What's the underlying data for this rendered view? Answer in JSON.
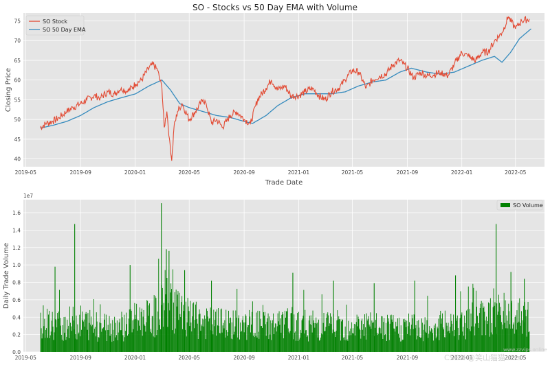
{
  "watermark": {
    "csdn": "CSDN",
    "author": "@笑山猫猫orss",
    "site": "www.zzvips.online"
  },
  "colors": {
    "stock": "#e24a33",
    "ema": "#348abd",
    "volume": "#008000",
    "plot_bg": "#e5e5e5",
    "grid": "#ffffff"
  },
  "chart_data": [
    {
      "type": "line",
      "title": "SO - Stocks vs 50 Day EMA with Volume",
      "xlabel": "Trade Date",
      "ylabel": "Closing Price",
      "xlim": [
        "2019-04-26",
        "2022-07-05"
      ],
      "ylim": [
        38,
        77
      ],
      "yticks": [
        40,
        45,
        50,
        55,
        60,
        65,
        70,
        75
      ],
      "xticks": [
        "2019-05",
        "2019-09",
        "2020-01",
        "2020-05",
        "2020-09",
        "2021-01",
        "2021-05",
        "2021-09",
        "2022-01",
        "2022-05"
      ],
      "grid": true,
      "legend_position": "top-left",
      "series": [
        {
          "name": "SO Stock",
          "x": [
            "2019-06-03",
            "2019-06-17",
            "2019-07-01",
            "2019-07-15",
            "2019-08-01",
            "2019-08-15",
            "2019-09-01",
            "2019-09-15",
            "2019-10-01",
            "2019-10-15",
            "2019-11-01",
            "2019-11-15",
            "2019-12-01",
            "2019-12-15",
            "2020-01-02",
            "2020-01-15",
            "2020-02-01",
            "2020-02-10",
            "2020-02-20",
            "2020-03-01",
            "2020-03-06",
            "2020-03-12",
            "2020-03-18",
            "2020-03-23",
            "2020-03-28",
            "2020-04-05",
            "2020-04-15",
            "2020-05-01",
            "2020-05-15",
            "2020-06-01",
            "2020-06-08",
            "2020-06-20",
            "2020-07-01",
            "2020-07-15",
            "2020-08-01",
            "2020-08-15",
            "2020-09-01",
            "2020-09-15",
            "2020-10-01",
            "2020-10-20",
            "2020-11-01",
            "2020-11-15",
            "2020-12-01",
            "2020-12-15",
            "2021-01-01",
            "2021-01-15",
            "2021-02-01",
            "2021-02-15",
            "2021-03-01",
            "2021-03-15",
            "2021-04-01",
            "2021-04-15",
            "2021-05-01",
            "2021-05-15",
            "2021-06-01",
            "2021-06-15",
            "2021-07-01",
            "2021-07-15",
            "2021-08-01",
            "2021-08-15",
            "2021-09-01",
            "2021-09-15",
            "2021-10-01",
            "2021-10-15",
            "2021-11-01",
            "2021-11-15",
            "2021-12-01",
            "2021-12-15",
            "2022-01-01",
            "2022-01-15",
            "2022-02-01",
            "2022-02-15",
            "2022-03-01",
            "2022-03-15",
            "2022-04-01",
            "2022-04-15",
            "2022-05-01",
            "2022-05-15",
            "2022-06-01"
          ],
          "values": [
            48.0,
            49.0,
            49.5,
            50.5,
            52.0,
            53.0,
            54.0,
            55.0,
            56.0,
            55.5,
            57.0,
            56.5,
            58.0,
            57.0,
            59.0,
            60.0,
            63.0,
            64.0,
            62.5,
            58.0,
            48.0,
            52.0,
            45.0,
            39.5,
            48.0,
            52.0,
            54.0,
            50.0,
            52.0,
            55.0,
            54.0,
            49.0,
            50.0,
            48.0,
            51.0,
            52.0,
            50.0,
            49.0,
            55.0,
            58.0,
            60.0,
            57.5,
            58.5,
            56.0,
            56.0,
            57.0,
            58.0,
            56.0,
            55.0,
            57.0,
            58.0,
            60.0,
            62.5,
            62.0,
            58.0,
            60.0,
            61.0,
            61.5,
            64.0,
            65.0,
            63.0,
            60.5,
            62.0,
            61.0,
            61.5,
            62.0,
            61.0,
            64.0,
            67.0,
            66.0,
            65.0,
            67.0,
            67.0,
            70.0,
            72.0,
            76.0,
            73.0,
            75.0,
            75.5
          ]
        },
        {
          "name": "SO 50 Day EMA",
          "x": [
            "2019-06-03",
            "2019-07-01",
            "2019-08-01",
            "2019-09-01",
            "2019-10-01",
            "2019-11-01",
            "2019-12-01",
            "2020-01-02",
            "2020-02-01",
            "2020-03-01",
            "2020-03-20",
            "2020-04-10",
            "2020-05-01",
            "2020-06-01",
            "2020-07-01",
            "2020-08-01",
            "2020-09-01",
            "2020-09-20",
            "2020-10-20",
            "2020-11-15",
            "2020-12-15",
            "2021-01-15",
            "2021-02-15",
            "2021-03-15",
            "2021-04-15",
            "2021-05-15",
            "2021-06-15",
            "2021-07-15",
            "2021-08-15",
            "2021-09-10",
            "2021-10-15",
            "2021-11-15",
            "2021-12-15",
            "2022-01-15",
            "2022-02-15",
            "2022-03-15",
            "2022-04-01",
            "2022-04-20",
            "2022-05-10",
            "2022-06-05"
          ],
          "values": [
            47.8,
            48.5,
            49.5,
            51.0,
            53.0,
            54.5,
            55.5,
            56.5,
            58.5,
            60.0,
            57.5,
            54.0,
            53.0,
            52.0,
            51.0,
            50.5,
            49.5,
            49.0,
            51.0,
            53.5,
            55.5,
            56.5,
            56.5,
            56.5,
            57.0,
            58.5,
            59.5,
            60.0,
            62.0,
            63.0,
            62.0,
            61.5,
            62.0,
            63.5,
            65.0,
            66.0,
            64.5,
            67.0,
            70.5,
            73.0
          ]
        }
      ]
    },
    {
      "type": "bar",
      "xlabel": "",
      "ylabel": "Daily Trade Volume",
      "y_multiplier_label": "1e7",
      "xlim": [
        "2019-04-26",
        "2022-07-05"
      ],
      "ylim": [
        0,
        1.75
      ],
      "yticks": [
        0.0,
        0.2,
        0.4,
        0.6,
        0.8,
        1.0,
        1.2,
        1.4,
        1.6
      ],
      "xticks": [
        "2019-05",
        "2019-09",
        "2020-01",
        "2020-05",
        "2020-09",
        "2021-01",
        "2021-05",
        "2021-09",
        "2022-01",
        "2022-05"
      ],
      "grid": true,
      "legend_position": "top-right",
      "series": [
        {
          "name": "SO Volume",
          "envelope_x": [
            "2019-06-03",
            "2019-07-01",
            "2019-08-01",
            "2019-09-01",
            "2019-10-01",
            "2019-11-01",
            "2019-12-01",
            "2020-01-02",
            "2020-02-01",
            "2020-02-20",
            "2020-03-10",
            "2020-03-25",
            "2020-04-15",
            "2020-05-15",
            "2020-06-15",
            "2020-07-15",
            "2020-08-15",
            "2020-09-15",
            "2020-10-15",
            "2020-11-15",
            "2020-12-15",
            "2021-01-15",
            "2021-02-15",
            "2021-03-15",
            "2021-04-15",
            "2021-05-15",
            "2021-06-15",
            "2021-07-15",
            "2021-08-15",
            "2021-09-15",
            "2021-10-15",
            "2021-11-15",
            "2021-12-15",
            "2022-01-15",
            "2022-02-15",
            "2022-03-15",
            "2022-04-15",
            "2022-05-15",
            "2022-06-01"
          ],
          "envelope_typical": [
            0.38,
            0.34,
            0.36,
            0.38,
            0.34,
            0.32,
            0.34,
            0.4,
            0.42,
            0.48,
            0.7,
            0.62,
            0.45,
            0.4,
            0.36,
            0.35,
            0.34,
            0.34,
            0.34,
            0.34,
            0.36,
            0.34,
            0.34,
            0.34,
            0.32,
            0.34,
            0.32,
            0.3,
            0.3,
            0.32,
            0.3,
            0.32,
            0.36,
            0.4,
            0.44,
            0.48,
            0.48,
            0.42,
            0.4
          ],
          "spikes": [
            {
              "x": "2019-08-18",
              "value": 1.47
            },
            {
              "x": "2019-07-05",
              "value": 0.98
            },
            {
              "x": "2019-12-20",
              "value": 1.0
            },
            {
              "x": "2020-02-28",
              "value": 1.71
            },
            {
              "x": "2020-03-10",
              "value": 1.18
            },
            {
              "x": "2020-03-16",
              "value": 1.16
            },
            {
              "x": "2020-04-20",
              "value": 0.94
            },
            {
              "x": "2020-06-19",
              "value": 0.82
            },
            {
              "x": "2020-12-18",
              "value": 0.91
            },
            {
              "x": "2021-03-19",
              "value": 0.82
            },
            {
              "x": "2021-06-18",
              "value": 0.79
            },
            {
              "x": "2021-09-17",
              "value": 0.82
            },
            {
              "x": "2021-12-17",
              "value": 0.88
            },
            {
              "x": "2022-03-18",
              "value": 1.47
            },
            {
              "x": "2022-04-20",
              "value": 0.92
            },
            {
              "x": "2022-05-20",
              "value": 0.84
            }
          ]
        }
      ]
    }
  ]
}
